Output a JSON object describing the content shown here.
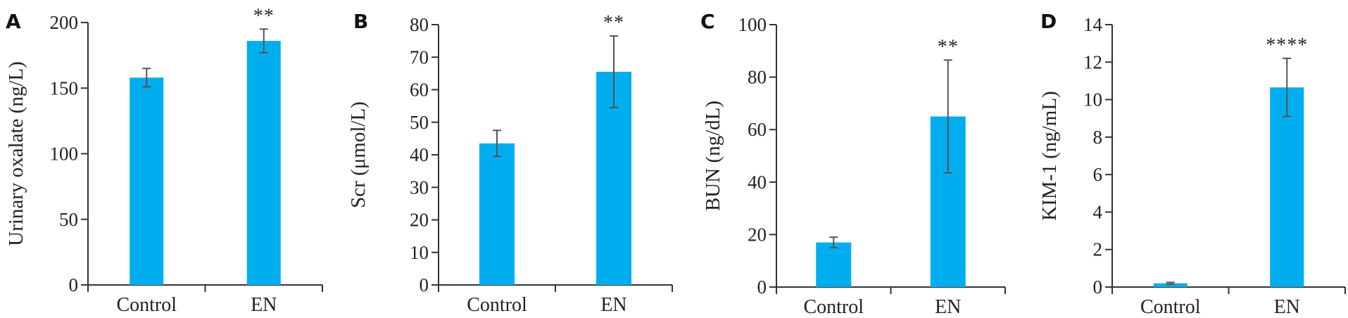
{
  "chart_data": [
    {
      "type": "bar",
      "panel": "A",
      "categories": [
        "Control",
        "EN"
      ],
      "values": [
        158,
        186
      ],
      "errors": [
        7,
        9
      ],
      "significance": [
        "",
        "**"
      ],
      "ylabel": "Urinary oxalate (ng/L)",
      "ylim": [
        0,
        200
      ],
      "yticks": [
        0,
        50,
        100,
        150,
        200
      ],
      "bar_color": "#00aeef"
    },
    {
      "type": "bar",
      "panel": "B",
      "categories": [
        "Control",
        "EN"
      ],
      "values": [
        43.5,
        65.5
      ],
      "errors": [
        4,
        11
      ],
      "significance": [
        "",
        "**"
      ],
      "ylabel": "Scr (μmol/L)",
      "ylim": [
        0,
        80
      ],
      "yticks": [
        0,
        10,
        20,
        30,
        40,
        50,
        60,
        70,
        80
      ],
      "bar_color": "#00aeef"
    },
    {
      "type": "bar",
      "panel": "C",
      "categories": [
        "Control",
        "EN"
      ],
      "values": [
        17,
        65
      ],
      "errors": [
        2,
        21.5
      ],
      "significance": [
        "",
        "**"
      ],
      "ylabel": "BUN (ng/dL)",
      "ylim": [
        0,
        100
      ],
      "yticks": [
        0,
        20,
        40,
        60,
        80,
        100
      ],
      "bar_color": "#00aeef"
    },
    {
      "type": "bar",
      "panel": "D",
      "categories": [
        "Control",
        "EN"
      ],
      "values": [
        0.2,
        10.65
      ],
      "errors": [
        0.05,
        1.55
      ],
      "significance": [
        "",
        "****"
      ],
      "ylabel": "KIM-1 (ng/mL)",
      "ylim": [
        0,
        14
      ],
      "yticks": [
        0,
        2,
        4,
        6,
        8,
        10,
        12,
        14
      ],
      "bar_color": "#00aeef"
    }
  ]
}
